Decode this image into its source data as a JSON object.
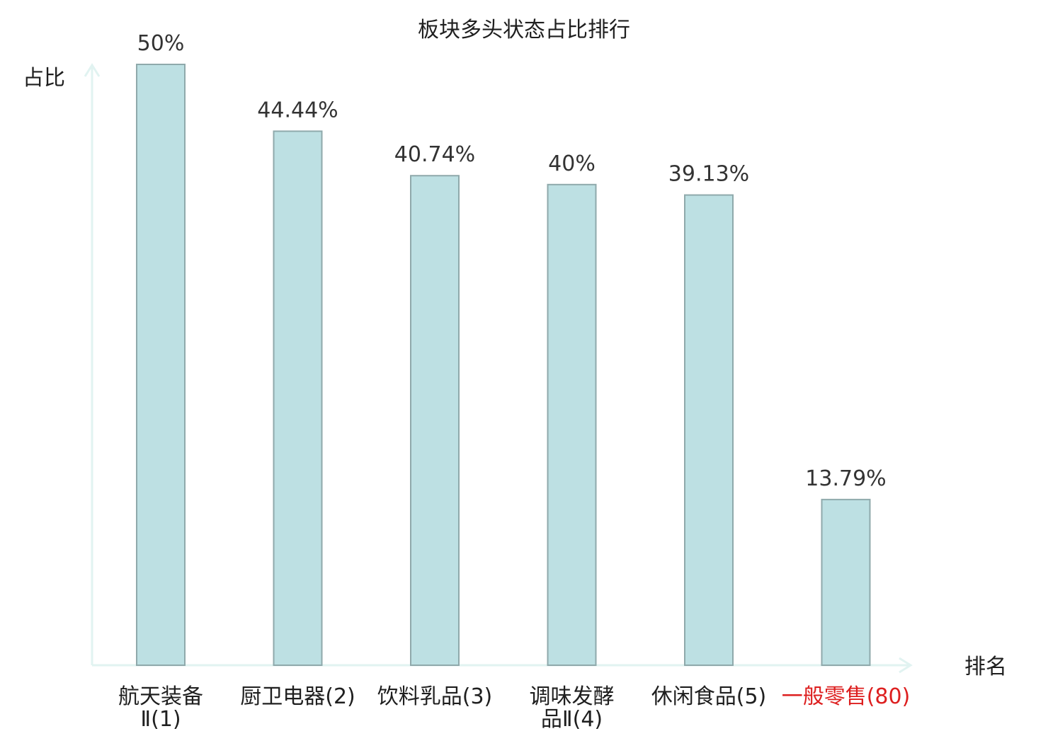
{
  "chart_data": {
    "type": "bar",
    "title": "板块多头状态占比排行",
    "ylabel": "占比",
    "xlabel": "排名",
    "ylim": [
      0,
      50
    ],
    "grid": false,
    "categories": [
      {
        "name": "航天装备Ⅱ",
        "rank": "(1)",
        "lines": [
          "航天装备",
          "Ⅱ(1)"
        ],
        "highlight": false
      },
      {
        "name": "厨卫电器",
        "rank": "(2)",
        "lines": [
          "厨卫电器(2)"
        ],
        "highlight": false
      },
      {
        "name": "饮料乳品",
        "rank": "(3)",
        "lines": [
          "饮料乳品(3)"
        ],
        "highlight": false
      },
      {
        "name": "调味发酵品Ⅱ",
        "rank": "(4)",
        "lines": [
          "调味发酵",
          "品Ⅱ(4)"
        ],
        "highlight": false
      },
      {
        "name": "休闲食品",
        "rank": "(5)",
        "lines": [
          "休闲食品(5)"
        ],
        "highlight": false
      },
      {
        "name": "一般零售",
        "rank": "(80)",
        "lines": [
          "一般零售(80)"
        ],
        "highlight": true
      }
    ],
    "values": [
      50,
      44.44,
      40.74,
      40,
      39.13,
      13.79
    ],
    "value_labels": [
      "50%",
      "44.44%",
      "40.74%",
      "40%",
      "39.13%",
      "13.79%"
    ],
    "colors": {
      "bar_fill": "#bde0e3",
      "bar_stroke": "#8fa9ab",
      "axis": "#e1f3f1",
      "text": "#1f1f1f",
      "value_text": "#333333",
      "highlight": "#dd1f1f"
    }
  }
}
